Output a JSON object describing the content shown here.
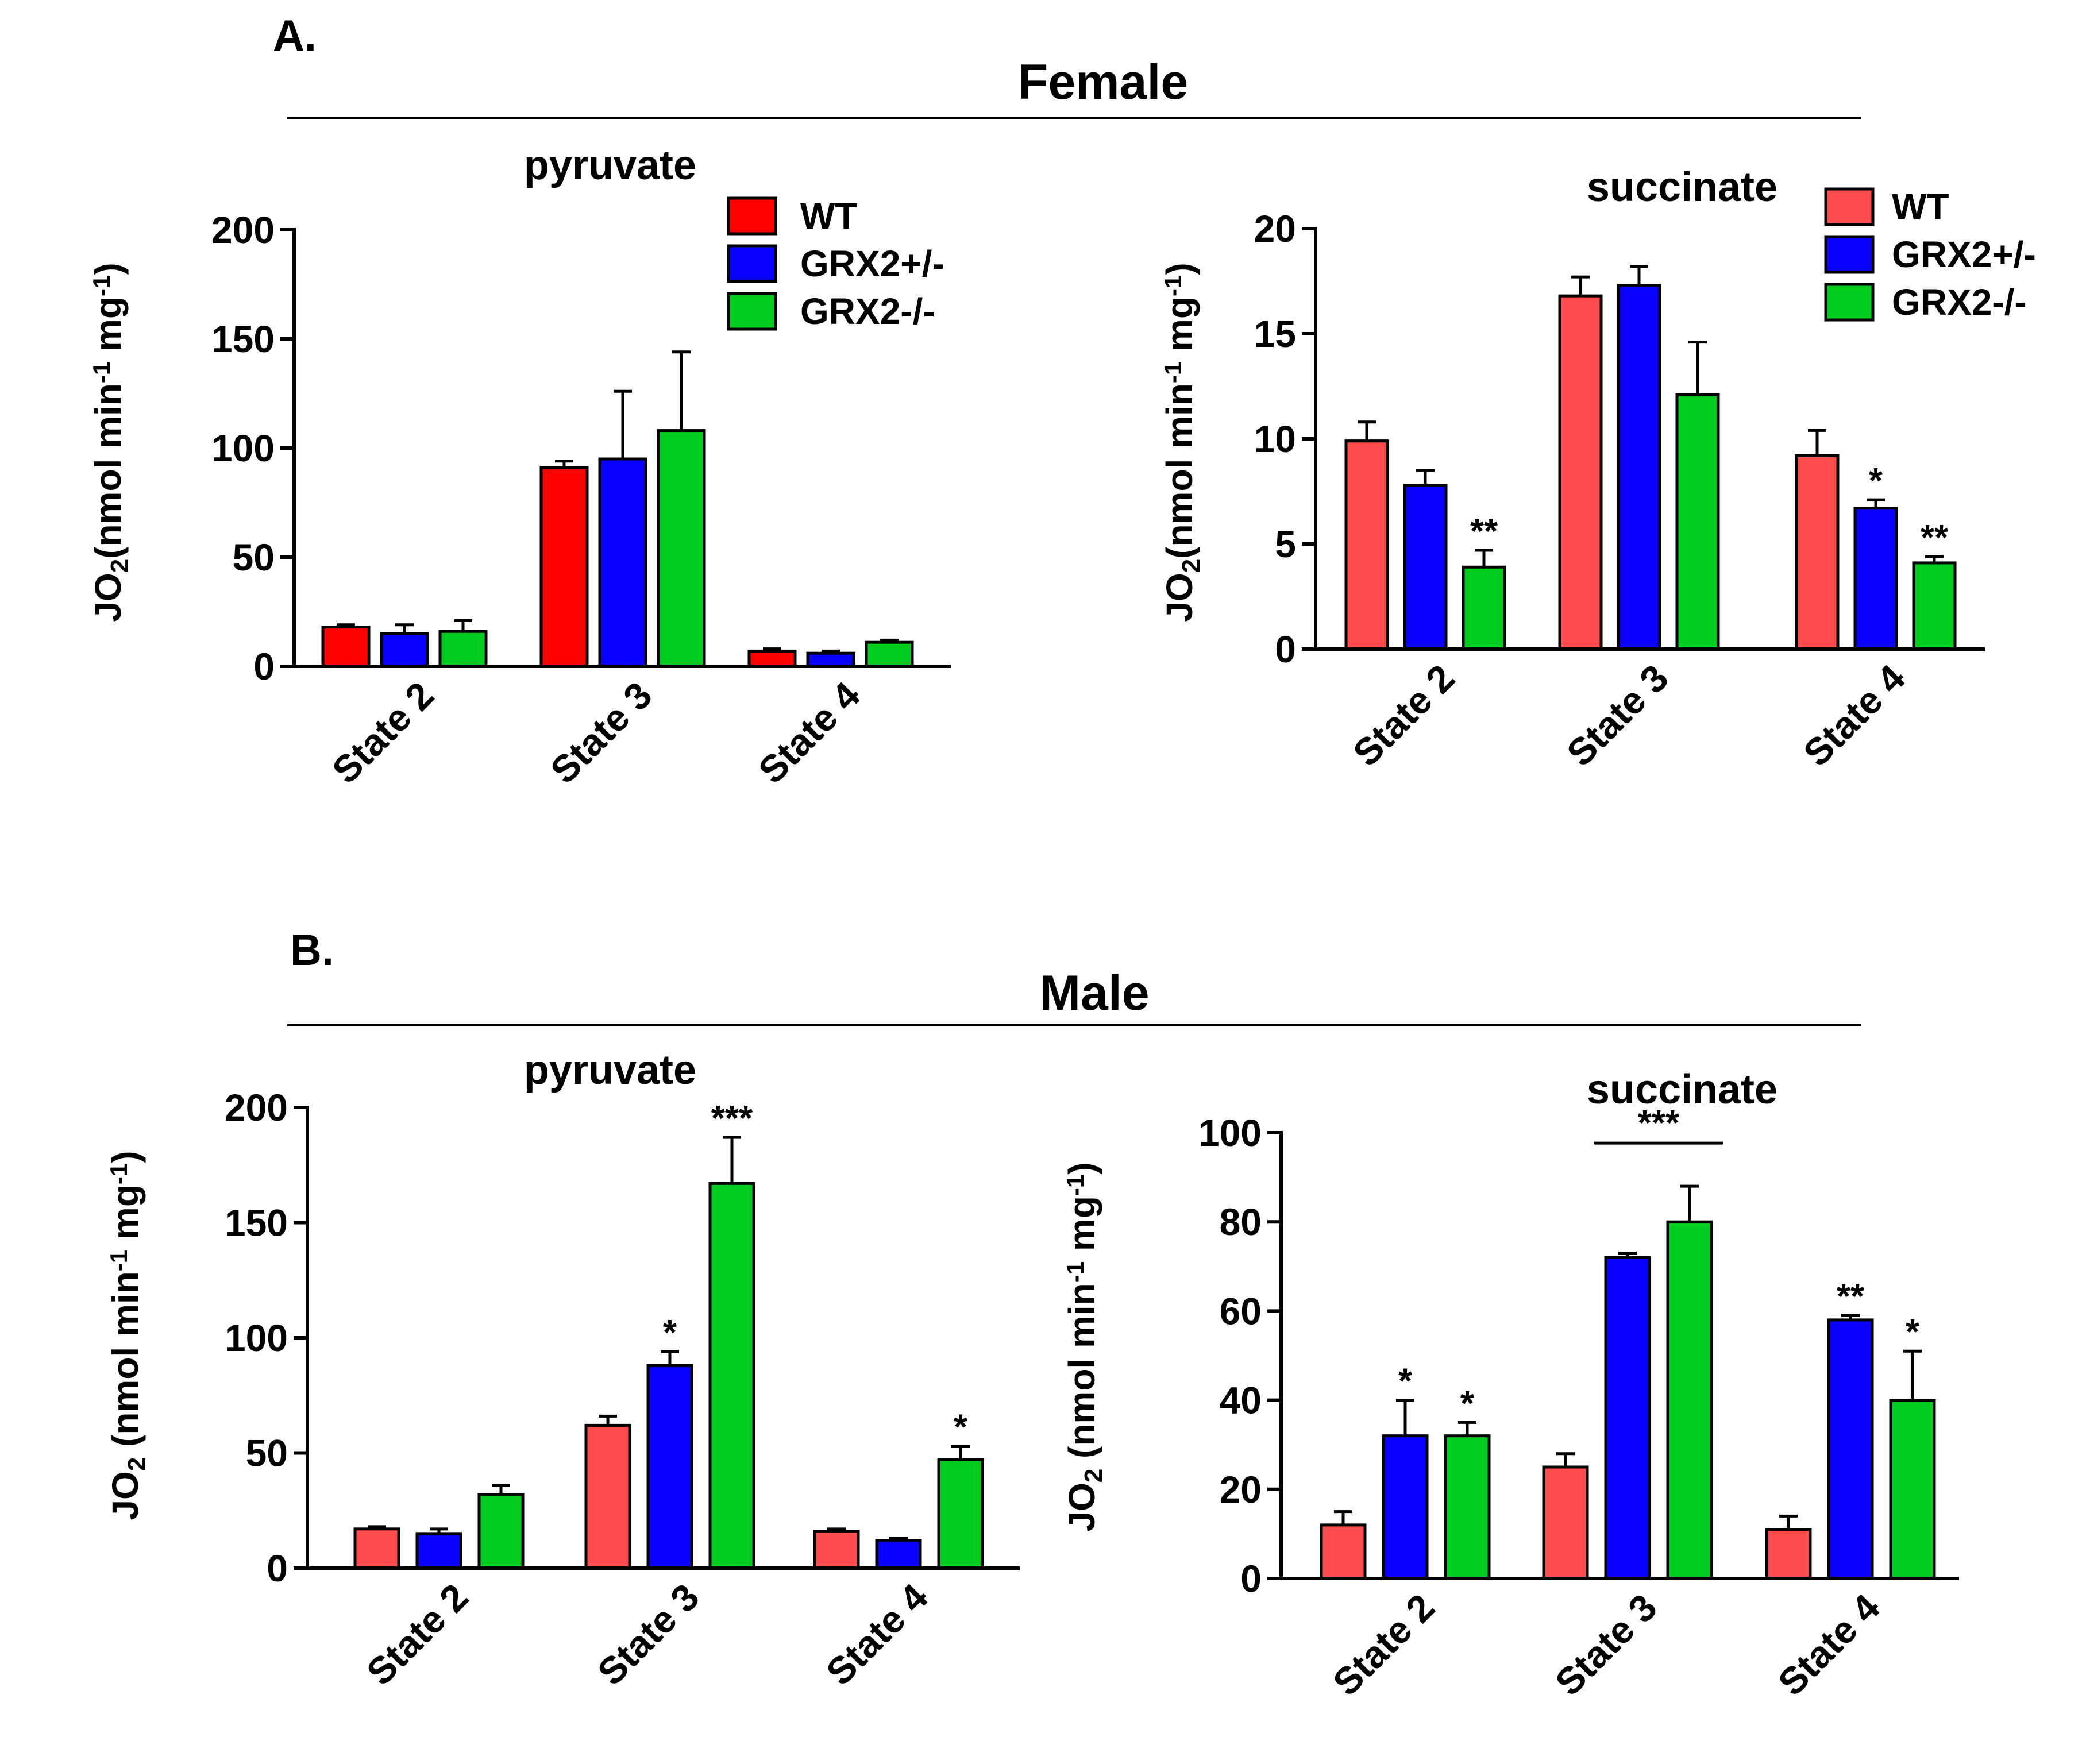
{
  "figure": {
    "panel_a": {
      "letter": "A.",
      "title": "Female"
    },
    "panel_b": {
      "letter": "B.",
      "title": "Male"
    }
  },
  "legend": [
    {
      "name": "WT"
    },
    {
      "name": "GRX2+/-"
    },
    {
      "name": "GRX2-/-"
    }
  ],
  "colors": {
    "WT_bright": "#ff0000",
    "WT_light": "#ff4c4c",
    "GRX2het": "#0a00ff",
    "GRX2ko": "#00cc1f"
  },
  "chart_data": [
    {
      "id": "female-pyruvate",
      "type": "bar",
      "title": "pyruvate",
      "ylabel": {
        "main": "JO",
        "sub": "2",
        "units_pre": "(nmol min",
        "sup1": "-1",
        "units_mid": " mg",
        "sup2": "-1",
        "units_post": ")"
      },
      "ylim": [
        0,
        200
      ],
      "yticks": [
        "0",
        "50",
        "100",
        "150",
        "200"
      ],
      "categories": [
        "State 2",
        "State 3",
        "State 4"
      ],
      "series": [
        {
          "name": "WT",
          "values": [
            18,
            91,
            7
          ],
          "errors": [
            1,
            3,
            1
          ]
        },
        {
          "name": "GRX2+/-",
          "values": [
            15,
            95,
            6
          ],
          "errors": [
            4,
            31,
            1
          ]
        },
        {
          "name": "GRX2-/-",
          "values": [
            16,
            108,
            11
          ],
          "errors": [
            5,
            36,
            1
          ]
        }
      ],
      "annotations": []
    },
    {
      "id": "female-succinate",
      "type": "bar",
      "title": "succinate",
      "ylabel": {
        "main": "JO",
        "sub": "2",
        "units_pre": "(nmol min",
        "sup1": "-1",
        "units_mid": " mg",
        "sup2": "-1",
        "units_post": ")"
      },
      "ylim": [
        0,
        20
      ],
      "yticks": [
        "0",
        "5",
        "10",
        "15",
        "20"
      ],
      "categories": [
        "State 2",
        "State 3",
        "State 4"
      ],
      "series": [
        {
          "name": "WT",
          "values": [
            9.9,
            16.8,
            9.2
          ],
          "errors": [
            0.9,
            0.9,
            1.2
          ]
        },
        {
          "name": "GRX2+/-",
          "values": [
            7.8,
            17.3,
            6.7
          ],
          "errors": [
            0.7,
            0.9,
            0.4
          ]
        },
        {
          "name": "GRX2-/-",
          "values": [
            3.9,
            12.1,
            4.1
          ],
          "errors": [
            0.8,
            2.5,
            0.3
          ]
        }
      ],
      "annotations": [
        {
          "category": 0,
          "series": 2,
          "label": "**"
        },
        {
          "category": 2,
          "series": 1,
          "label": "*"
        },
        {
          "category": 2,
          "series": 2,
          "label": "**"
        }
      ]
    },
    {
      "id": "male-pyruvate",
      "type": "bar",
      "title": "pyruvate",
      "ylabel": {
        "main": "JO",
        "sub": "2",
        "units_pre": " (nmol min",
        "sup1": "-1",
        "units_mid": " mg",
        "sup2": "-1",
        "units_post": ")"
      },
      "ylim": [
        0,
        200
      ],
      "yticks": [
        "0",
        "50",
        "100",
        "150",
        "200"
      ],
      "categories": [
        "State 2",
        "State 3",
        "State 4"
      ],
      "series": [
        {
          "name": "WT",
          "values": [
            17,
            62,
            16
          ],
          "errors": [
            1,
            4,
            1
          ]
        },
        {
          "name": "GRX2+/-",
          "values": [
            15,
            88,
            12
          ],
          "errors": [
            2,
            6,
            1
          ]
        },
        {
          "name": "GRX2-/-",
          "values": [
            32,
            167,
            47
          ],
          "errors": [
            4,
            20,
            6
          ]
        }
      ],
      "annotations": [
        {
          "category": 1,
          "series": 1,
          "label": "*"
        },
        {
          "category": 1,
          "series": 2,
          "label": "***"
        },
        {
          "category": 2,
          "series": 2,
          "label": "*"
        }
      ]
    },
    {
      "id": "male-succinate",
      "type": "bar",
      "title": "succinate",
      "ylabel": {
        "main": "JO",
        "sub": "2",
        "units_pre": " (nmol min",
        "sup1": "-1",
        "units_mid": " mg",
        "sup2": "-1",
        "units_post": ")"
      },
      "ylim": [
        0,
        100
      ],
      "yticks": [
        "0",
        "20",
        "40",
        "60",
        "80",
        "100"
      ],
      "categories": [
        "State 2",
        "State 3",
        "State 4"
      ],
      "series": [
        {
          "name": "WT",
          "values": [
            12,
            25,
            11
          ],
          "errors": [
            3,
            3,
            3
          ]
        },
        {
          "name": "GRX2+/-",
          "values": [
            32,
            72,
            58
          ],
          "errors": [
            8,
            1,
            1
          ]
        },
        {
          "name": "GRX2-/-",
          "values": [
            32,
            80,
            40
          ],
          "errors": [
            3,
            8,
            11
          ]
        }
      ],
      "annotations": [
        {
          "category": 0,
          "series": 1,
          "label": "*"
        },
        {
          "category": 0,
          "series": 2,
          "label": "*"
        },
        {
          "category": 2,
          "series": 1,
          "label": "**"
        },
        {
          "category": 2,
          "series": 2,
          "label": "*"
        }
      ],
      "bracket": {
        "category": 1,
        "from_series": 1,
        "to_series": 2,
        "label": "***"
      }
    }
  ]
}
